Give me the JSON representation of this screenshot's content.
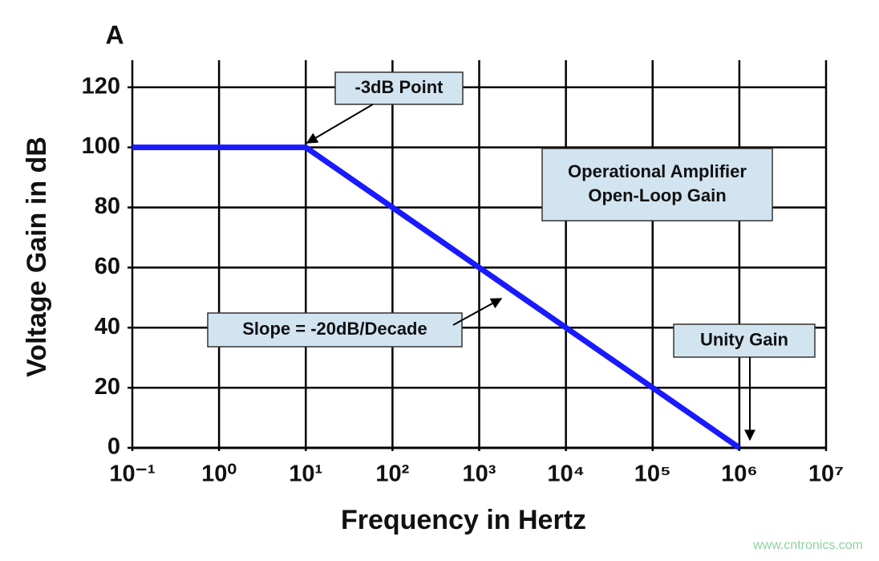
{
  "chart_data": {
    "type": "line",
    "panel_label": "A",
    "x_label": "Frequency in Hertz",
    "y_label": "Voltage Gain in dB",
    "x": [
      0.1,
      10,
      1000000
    ],
    "series": [
      {
        "name": "Open-Loop Gain",
        "color": "#1a1aff",
        "values": [
          100,
          100,
          0
        ]
      }
    ],
    "xlim": [
      0.1,
      10000000
    ],
    "xscale": "log",
    "xticks": [
      {
        "value": 0.1,
        "label": "10⁻¹"
      },
      {
        "value": 1,
        "label": "10⁰"
      },
      {
        "value": 10,
        "label": "10¹"
      },
      {
        "value": 100,
        "label": "10²"
      },
      {
        "value": 1000,
        "label": "10³"
      },
      {
        "value": 10000,
        "label": "10⁴"
      },
      {
        "value": 100000,
        "label": "10⁵"
      },
      {
        "value": 1000000,
        "label": "10⁶"
      },
      {
        "value": 10000000,
        "label": "10⁷"
      }
    ],
    "ylim": [
      0,
      129
    ],
    "yticks": [
      0,
      20,
      40,
      60,
      80,
      100,
      120
    ],
    "grid": true,
    "annotations": [
      {
        "text": [
          "-3dB Point"
        ]
      },
      {
        "text": [
          "Operational Amplifier",
          "Open-Loop Gain"
        ]
      },
      {
        "text": [
          "Slope = -20dB/Decade"
        ]
      },
      {
        "text": [
          "Unity Gain"
        ]
      }
    ],
    "watermark": "www.cntronics.com"
  }
}
